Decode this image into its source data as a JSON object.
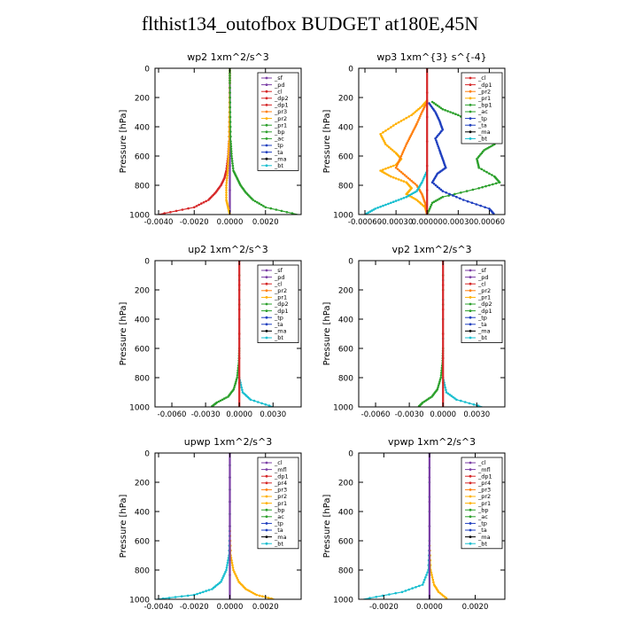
{
  "title": "flthist134_outofbox  BUDGET at180E,45N",
  "chart_data": [
    {
      "type": "line",
      "title": "wp2  1xm^2/s^3",
      "ylabel": "Pressure [hPa]",
      "xlim": [
        -0.0042,
        0.004
      ],
      "ylim": [
        1000,
        0
      ],
      "xticks": [
        -0.004,
        -0.002,
        0.0,
        0.002
      ],
      "xtick_labels": [
        "-0.0040",
        "-0.0020",
        "0.0000",
        "0.0020"
      ],
      "yticks": [
        0,
        200,
        400,
        600,
        800,
        1000
      ],
      "ytick_labels": [
        "0",
        "200",
        "400",
        "600",
        "800",
        "1000"
      ],
      "legend_position": "top-right",
      "legend": [
        {
          "label": "_sf",
          "color": "#7b3fa6"
        },
        {
          "label": "_pd",
          "color": "#7b3fa6"
        },
        {
          "label": "_cl",
          "color": "#d62728"
        },
        {
          "label": "_dp2",
          "color": "#d62728"
        },
        {
          "label": "_dp1",
          "color": "#d62728"
        },
        {
          "label": "_pr3",
          "color": "#ff7f0e"
        },
        {
          "label": "_pr2",
          "color": "#ffb000"
        },
        {
          "label": "_pr1",
          "color": "#2ca02c"
        },
        {
          "label": "_bp",
          "color": "#2ca02c"
        },
        {
          "label": "_ac",
          "color": "#2ca02c"
        },
        {
          "label": "_tp",
          "color": "#1f3fbf"
        },
        {
          "label": "_ta",
          "color": "#1f3fbf"
        },
        {
          "label": "_ma",
          "color": "#000000"
        },
        {
          "label": "_bt",
          "color": "#17becf"
        }
      ],
      "series": [
        {
          "color": "#7b3fa6",
          "y": [
            0,
            1000
          ],
          "x": [
            0,
            0
          ]
        },
        {
          "color": "#d62728",
          "y": [
            0,
            100,
            300,
            500,
            600,
            700,
            750,
            800,
            850,
            900,
            950,
            1000
          ],
          "x": [
            0,
            0,
            -2e-05,
            -5e-05,
            -0.0001,
            -0.0002,
            -0.0003,
            -0.0005,
            -0.0008,
            -0.0012,
            -0.002,
            -0.004
          ]
        },
        {
          "color": "#ffb000",
          "y": [
            0,
            100,
            300,
            500,
            600,
            700,
            800,
            900,
            950,
            1000
          ],
          "x": [
            0,
            0,
            -2e-05,
            -4e-05,
            -8e-05,
            -0.00012,
            -0.0002,
            -0.0002,
            -0.0001,
            0
          ]
        },
        {
          "color": "#2ca02c",
          "y": [
            0,
            100,
            300,
            500,
            600,
            700,
            750,
            800,
            850,
            900,
            950,
            1000
          ],
          "x": [
            0,
            0,
            2e-05,
            5e-05,
            0.0001,
            0.0002,
            0.0004,
            0.0006,
            0.0009,
            0.0013,
            0.002,
            0.0038
          ]
        }
      ]
    },
    {
      "type": "line",
      "title": "wp3  1xm^{3} s^{-4}",
      "ylabel": "Pressure [hPa]",
      "xlim": [
        -0.00066,
        0.00075
      ],
      "ylim": [
        1000,
        0
      ],
      "xticks": [
        -0.0006,
        -0.0003,
        0.0,
        0.0003,
        0.0006
      ],
      "xtick_labels": [
        "-0.00060",
        "-0.00030",
        "0.00000",
        "0.00030",
        "0.00060"
      ],
      "yticks": [
        0,
        200,
        400,
        600,
        800,
        1000
      ],
      "ytick_labels": [
        "0",
        "200",
        "400",
        "600",
        "800",
        "1000"
      ],
      "legend_position": "top-right",
      "legend": [
        {
          "label": "_cl",
          "color": "#d62728"
        },
        {
          "label": "_dp1",
          "color": "#d62728"
        },
        {
          "label": "_pr2",
          "color": "#ff7f0e"
        },
        {
          "label": "_pr1",
          "color": "#ffb000"
        },
        {
          "label": "_bp1",
          "color": "#2ca02c"
        },
        {
          "label": "_ac",
          "color": "#2ca02c"
        },
        {
          "label": "_tp",
          "color": "#1f3fbf"
        },
        {
          "label": "_ta",
          "color": "#1f3fbf"
        },
        {
          "label": "_ma",
          "color": "#000000"
        },
        {
          "label": "_bt",
          "color": "#17becf"
        }
      ],
      "series": [
        {
          "color": "#ffb000",
          "y": [
            220,
            260,
            320,
            380,
            450,
            520,
            580,
            620,
            660,
            700,
            740,
            780,
            820,
            860,
            900,
            950,
            1000
          ],
          "x": [
            0,
            -5e-05,
            -0.00015,
            -0.0003,
            -0.00045,
            -0.0004,
            -0.0003,
            -0.00025,
            -0.0003,
            -0.00045,
            -0.00035,
            -0.0002,
            -0.00015,
            -0.0002,
            -0.0001,
            -2e-05,
            0
          ]
        },
        {
          "color": "#ff7f0e",
          "y": [
            230,
            300,
            380,
            450,
            520,
            600,
            680,
            740,
            800,
            860,
            920,
            1000
          ],
          "x": [
            0,
            -5e-05,
            -0.0001,
            -0.00015,
            -0.0002,
            -0.00025,
            -0.0003,
            -0.0002,
            -0.0001,
            -5e-05,
            -2e-05,
            0
          ]
        },
        {
          "color": "#2ca02c",
          "y": [
            230,
            280,
            320,
            380,
            450,
            520,
            560,
            620,
            680,
            740,
            780,
            820,
            880,
            920,
            1000
          ],
          "x": [
            5e-05,
            0.00015,
            0.0003,
            0.00045,
            0.0006,
            0.00065,
            0.00055,
            0.00048,
            0.0005,
            0.00065,
            0.0007,
            0.0005,
            0.00015,
            5e-05,
            0
          ]
        },
        {
          "color": "#1f3fbf",
          "y": [
            240,
            300,
            360,
            420,
            480,
            560,
            620,
            680,
            720,
            780,
            840,
            900,
            960,
            1000
          ],
          "x": [
            2e-05,
            8e-05,
            0.00012,
            0.00015,
            8e-05,
            0.00012,
            0.00015,
            0.00018,
            0.0001,
            5e-05,
            0.00015,
            0.00035,
            0.0006,
            0.00065
          ]
        },
        {
          "color": "#17becf",
          "y": [
            700,
            780,
            840,
            880,
            920,
            960,
            1000
          ],
          "x": [
            0,
            -5e-05,
            -0.0001,
            -0.0002,
            -0.00035,
            -0.0005,
            -0.0006
          ]
        },
        {
          "color": "#d62728",
          "y": [
            0,
            1000
          ],
          "x": [
            0,
            0
          ]
        }
      ]
    },
    {
      "type": "line",
      "title": "up2  1xm^2/s^3",
      "ylabel": "Pressure [hPa]",
      "xlim": [
        -0.0075,
        0.0055
      ],
      "ylim": [
        1000,
        0
      ],
      "xticks": [
        -0.006,
        -0.003,
        0.0,
        0.003
      ],
      "xtick_labels": [
        "-0.0060",
        "-0.0030",
        "0.0000",
        "0.0030"
      ],
      "yticks": [
        0,
        200,
        400,
        600,
        800,
        1000
      ],
      "ytick_labels": [
        "0",
        "200",
        "400",
        "600",
        "800",
        "1000"
      ],
      "legend_position": "top-right",
      "legend": [
        {
          "label": "_sf",
          "color": "#7b3fa6"
        },
        {
          "label": "_pd",
          "color": "#7b3fa6"
        },
        {
          "label": "_cl",
          "color": "#d62728"
        },
        {
          "label": "_pr2",
          "color": "#ff7f0e"
        },
        {
          "label": "_pr1",
          "color": "#ffb000"
        },
        {
          "label": "_dp2",
          "color": "#2ca02c"
        },
        {
          "label": "_dp1",
          "color": "#2ca02c"
        },
        {
          "label": "_tp",
          "color": "#1f3fbf"
        },
        {
          "label": "_ta",
          "color": "#1f3fbf"
        },
        {
          "label": "_ma",
          "color": "#000000"
        },
        {
          "label": "_bt",
          "color": "#17becf"
        }
      ],
      "series": [
        {
          "color": "#2ca02c",
          "y": [
            0,
            600,
            700,
            800,
            880,
            930,
            970,
            1000
          ],
          "x": [
            0,
            0,
            -5e-05,
            -0.0002,
            -0.0005,
            -0.001,
            -0.002,
            -0.0025
          ]
        },
        {
          "color": "#17becf",
          "y": [
            0,
            800,
            900,
            950,
            1000
          ],
          "x": [
            0,
            0,
            0.0003,
            0.001,
            0.003
          ]
        },
        {
          "color": "#d62728",
          "y": [
            0,
            1000
          ],
          "x": [
            0,
            0
          ]
        }
      ]
    },
    {
      "type": "line",
      "title": "vp2  1xm^2/s^3",
      "ylabel": "Pressure [hPa]",
      "xlim": [
        -0.0075,
        0.0055
      ],
      "ylim": [
        1000,
        0
      ],
      "xticks": [
        -0.006,
        -0.003,
        0.0,
        0.003
      ],
      "xtick_labels": [
        "-0.0060",
        "-0.0030",
        "0.0000",
        "0.0030"
      ],
      "yticks": [
        0,
        200,
        400,
        600,
        800,
        1000
      ],
      "ytick_labels": [
        "0",
        "200",
        "400",
        "600",
        "800",
        "1000"
      ],
      "legend_position": "top-right",
      "legend": [
        {
          "label": "_sf",
          "color": "#7b3fa6"
        },
        {
          "label": "_pd",
          "color": "#7b3fa6"
        },
        {
          "label": "_cl",
          "color": "#d62728"
        },
        {
          "label": "_pr2",
          "color": "#ff7f0e"
        },
        {
          "label": "_pr1",
          "color": "#ffb000"
        },
        {
          "label": "_dp2",
          "color": "#2ca02c"
        },
        {
          "label": "_dp1",
          "color": "#2ca02c"
        },
        {
          "label": "_tp",
          "color": "#1f3fbf"
        },
        {
          "label": "_ta",
          "color": "#1f3fbf"
        },
        {
          "label": "_ma",
          "color": "#000000"
        },
        {
          "label": "_bt",
          "color": "#17becf"
        }
      ],
      "series": [
        {
          "color": "#2ca02c",
          "y": [
            0,
            600,
            700,
            800,
            880,
            930,
            970,
            1000
          ],
          "x": [
            0,
            0,
            -5e-05,
            -0.0002,
            -0.0005,
            -0.001,
            -0.0018,
            -0.0022
          ]
        },
        {
          "color": "#17becf",
          "y": [
            0,
            800,
            900,
            950,
            1000
          ],
          "x": [
            0,
            0,
            0.0003,
            0.0012,
            0.0035
          ]
        },
        {
          "color": "#d62728",
          "y": [
            0,
            1000
          ],
          "x": [
            0,
            0
          ]
        }
      ]
    },
    {
      "type": "line",
      "title": "upwp  1xm^2/s^3",
      "ylabel": "Pressure [hPa]",
      "xlim": [
        -0.0042,
        0.004
      ],
      "ylim": [
        1000,
        0
      ],
      "xticks": [
        -0.004,
        -0.002,
        0.0,
        0.002
      ],
      "xtick_labels": [
        "-0.0040",
        "-0.0020",
        "0.0000",
        "0.0020"
      ],
      "yticks": [
        0,
        200,
        400,
        600,
        800,
        1000
      ],
      "ytick_labels": [
        "0",
        "200",
        "400",
        "600",
        "800",
        "1000"
      ],
      "legend_position": "top-right",
      "legend": [
        {
          "label": "_cl",
          "color": "#7b3fa6"
        },
        {
          "label": "_mfl",
          "color": "#7b3fa6"
        },
        {
          "label": "_dp1",
          "color": "#d62728"
        },
        {
          "label": "_pr4",
          "color": "#d62728"
        },
        {
          "label": "_pr3",
          "color": "#ff7f0e"
        },
        {
          "label": "_pr2",
          "color": "#ffb000"
        },
        {
          "label": "_pr1",
          "color": "#ffb000"
        },
        {
          "label": "_bp",
          "color": "#2ca02c"
        },
        {
          "label": "_ac",
          "color": "#2ca02c"
        },
        {
          "label": "_tp",
          "color": "#1f3fbf"
        },
        {
          "label": "_ta",
          "color": "#1f3fbf"
        },
        {
          "label": "_ma",
          "color": "#000000"
        },
        {
          "label": "_bt",
          "color": "#17becf"
        }
      ],
      "series": [
        {
          "color": "#ffb000",
          "y": [
            0,
            500,
            700,
            800,
            880,
            930,
            970,
            1000
          ],
          "x": [
            0,
            0,
            5e-05,
            0.0002,
            0.0005,
            0.0009,
            0.0015,
            0.0025
          ]
        },
        {
          "color": "#17becf",
          "y": [
            0,
            500,
            700,
            800,
            880,
            930,
            970,
            1000
          ],
          "x": [
            0,
            0,
            -5e-05,
            -0.0002,
            -0.0005,
            -0.001,
            -0.002,
            -0.0041
          ]
        },
        {
          "color": "#7b3fa6",
          "y": [
            0,
            1000
          ],
          "x": [
            0,
            0
          ]
        }
      ]
    },
    {
      "type": "line",
      "title": "vpwp  1xm^2/s^3",
      "ylabel": "Pressure [hPa]",
      "xlim": [
        -0.0031,
        0.0033
      ],
      "ylim": [
        1000,
        0
      ],
      "xticks": [
        -0.002,
        0.0,
        0.002
      ],
      "xtick_labels": [
        "-0.0020",
        "0.0000",
        "0.0020"
      ],
      "yticks": [
        0,
        200,
        400,
        600,
        800,
        1000
      ],
      "ytick_labels": [
        "0",
        "200",
        "400",
        "600",
        "800",
        "1000"
      ],
      "legend_position": "top-right",
      "legend": [
        {
          "label": "_cl",
          "color": "#7b3fa6"
        },
        {
          "label": "_mfl",
          "color": "#7b3fa6"
        },
        {
          "label": "_dp1",
          "color": "#d62728"
        },
        {
          "label": "_pr4",
          "color": "#d62728"
        },
        {
          "label": "_pr3",
          "color": "#ff7f0e"
        },
        {
          "label": "_pr2",
          "color": "#ffb000"
        },
        {
          "label": "_pr1",
          "color": "#ffb000"
        },
        {
          "label": "_bp",
          "color": "#2ca02c"
        },
        {
          "label": "_ac",
          "color": "#2ca02c"
        },
        {
          "label": "_tp",
          "color": "#1f3fbf"
        },
        {
          "label": "_ta",
          "color": "#1f3fbf"
        },
        {
          "label": "_ma",
          "color": "#000000"
        },
        {
          "label": "_bt",
          "color": "#17becf"
        }
      ],
      "series": [
        {
          "color": "#ffb000",
          "y": [
            0,
            600,
            800,
            900,
            950,
            1000
          ],
          "x": [
            0,
            0,
            5e-05,
            0.0002,
            0.0004,
            0.0008
          ]
        },
        {
          "color": "#17becf",
          "y": [
            0,
            600,
            800,
            900,
            950,
            1000
          ],
          "x": [
            0,
            0,
            -5e-05,
            -0.0003,
            -0.0012,
            -0.0029
          ]
        },
        {
          "color": "#7b3fa6",
          "y": [
            0,
            1000
          ],
          "x": [
            0,
            0
          ]
        }
      ]
    }
  ]
}
